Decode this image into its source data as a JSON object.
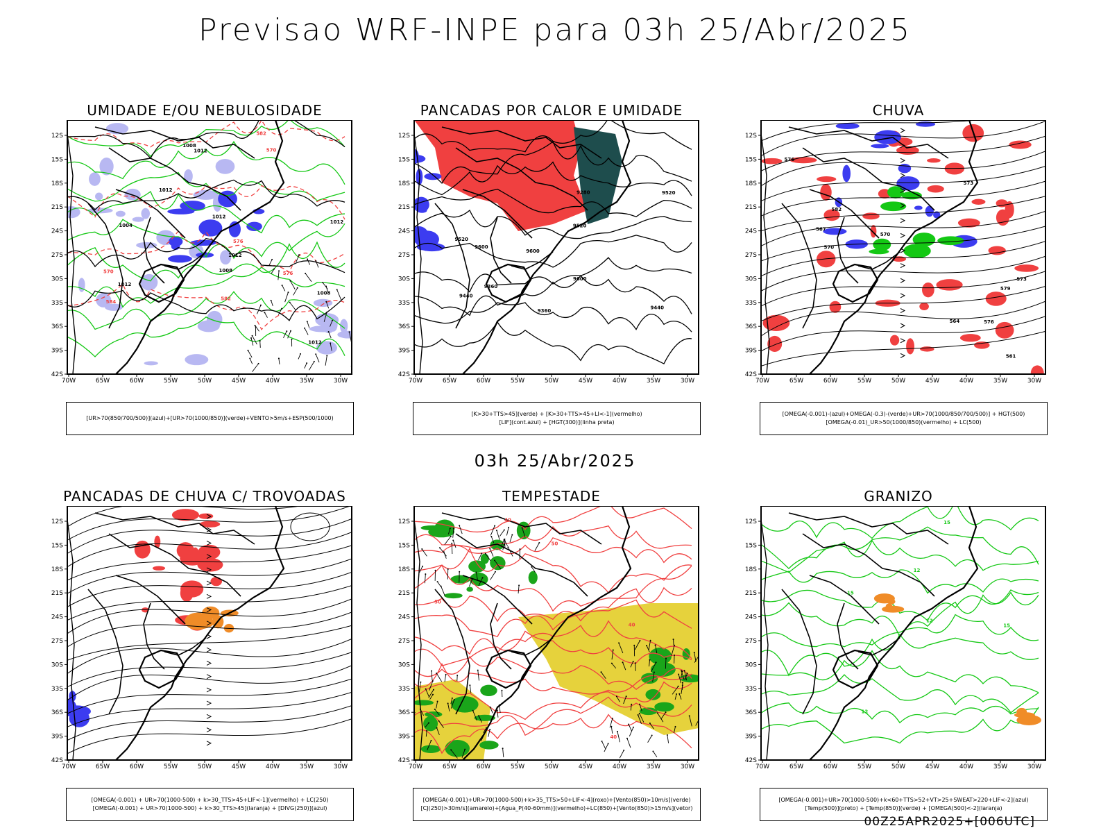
{
  "main_title": "Previsao WRF-INPE  para 03h 25/Abr/2025",
  "mid_title": "03h 25/Abr/2025",
  "footer": "00Z25APR2025+[006UTC]",
  "axes": {
    "lat_labels": [
      "12S",
      "15S",
      "18S",
      "21S",
      "24S",
      "27S",
      "30S",
      "33S",
      "36S",
      "39S",
      "42S"
    ],
    "lon_labels": [
      "70W",
      "65W",
      "60W",
      "55W",
      "50W",
      "45W",
      "40W",
      "35W",
      "30W"
    ]
  },
  "colors": {
    "blue": "#3c3cf0",
    "lavender": "#b8b8f2",
    "green": "#14c814",
    "red": "#f04040",
    "dark_teal": "#1e4d4d",
    "orange": "#f08c28",
    "yellow": "#e6d23c"
  },
  "panels": [
    {
      "title": "UMIDADE E/OU NEBULOSIDADE",
      "legend": [
        "[UR>70(850/700/500)](azul)+[UR>70(1000/850)](verde)+VENTO>5m/s+ESP(500/1000)"
      ],
      "contour_labels": [
        "1012",
        "1012",
        "1008",
        "1012",
        "1012",
        "1012",
        "1008",
        "1012",
        "1004",
        "1008",
        "1012",
        "570",
        "576",
        "582",
        "584",
        "570",
        "576",
        "582"
      ]
    },
    {
      "title": "PANCADAS POR CALOR E UMIDADE",
      "legend": [
        "[K>30+TTS>45](verde) + [K>30+TTS>45+LI<-1](vermelho)",
        "[LIF](cont.azul) + [HGT(300)](linha preta)"
      ],
      "contour_labels": [
        "9600",
        "9520",
        "9440",
        "9360",
        "9600",
        "9520",
        "9440",
        "9360",
        "9280",
        "9600",
        "9520"
      ]
    },
    {
      "title": "CHUVA",
      "legend": [
        "[OMEGA(-0.001)-(azul)+OMEGA(-0.3)-(verde)+UR>70(1000/850/700/500)] + HGT(500)",
        "[OMEGA(-0.01)_UR>50(1000/850)(vermelho) + LC(500)"
      ],
      "contour_labels": [
        "582",
        "579",
        "576",
        "573",
        "570",
        "567",
        "564",
        "561",
        "576",
        "573",
        "570"
      ]
    },
    {
      "title": "PANCADAS DE CHUVA C/ TROVOADAS",
      "legend": [
        "[OMEGA(-0.001) + UR>70(1000-500) + k>30_TTS>45+LIF<-1](vermelho) + LC(250)",
        "[OMEGA(-0.001) + UR>70(1000-500) + k>30_TTS>45](laranja) + [DIVG(250)](azul)"
      ],
      "contour_labels": []
    },
    {
      "title": "TEMPESTADE",
      "legend": [
        "[OMEGA(-0.001)+UR>70(1000-500)+k>35_TTS>50+LIF<-4](roxo)+[Vento(850)>10m/s](verde)",
        "[CJ(250)>30m/s](amarelo)+[Agua_P(40-60mm)](vermelho)+LC(850)+[Vento(850)>15m/s](vetor)"
      ],
      "contour_labels": [
        "40",
        "50",
        "40",
        "50",
        "40"
      ]
    },
    {
      "title": "GRANIZO",
      "legend": [
        "[OMEGA(-0.001)+UR>70(1000-500)+k<60+TTS>52+VT>25+SWEAT>220+LIF<-2](azul)",
        "[Temp(500)](preto) + [Temp(850)](verde) + [OMEGA(500)<-2](laranja)"
      ],
      "contour_labels": [
        "12",
        "15",
        "15",
        "12",
        "12",
        "15"
      ]
    }
  ]
}
